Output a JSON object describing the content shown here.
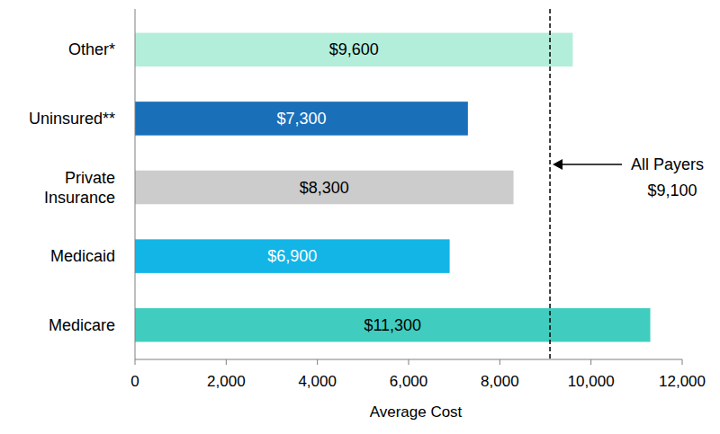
{
  "chart_data": {
    "type": "bar",
    "orientation": "horizontal",
    "categories": [
      "Other*",
      "Uninsured**",
      "Private Insurance",
      "Medicaid",
      "Medicare"
    ],
    "values": [
      9600,
      7300,
      8300,
      6900,
      11300
    ],
    "value_labels": [
      "$9,600",
      "$7,300",
      "$8,300",
      "$6,900",
      "$11,300"
    ],
    "colors": [
      "#b3eedb",
      "#1a6fb9",
      "#cccccc",
      "#12b5e6",
      "#40cdbf"
    ],
    "data_labels": true,
    "x_label": "Average Cost",
    "xlim": [
      0,
      12000
    ],
    "xticks": [
      0,
      {
        "value": 2000,
        "label": "2,000"
      },
      {
        "value": 4000,
        "label": "4,000"
      },
      {
        "value": 6000,
        "label": "6,000"
      },
      {
        "value": 8000,
        "label": "8,000"
      },
      {
        "value": 10000,
        "label": "10,000"
      },
      {
        "value": 12000,
        "label": "12,000"
      }
    ],
    "grid": false,
    "reference_line": {
      "value": 9100,
      "label": "All Payers",
      "value_label": "$9,100"
    }
  }
}
